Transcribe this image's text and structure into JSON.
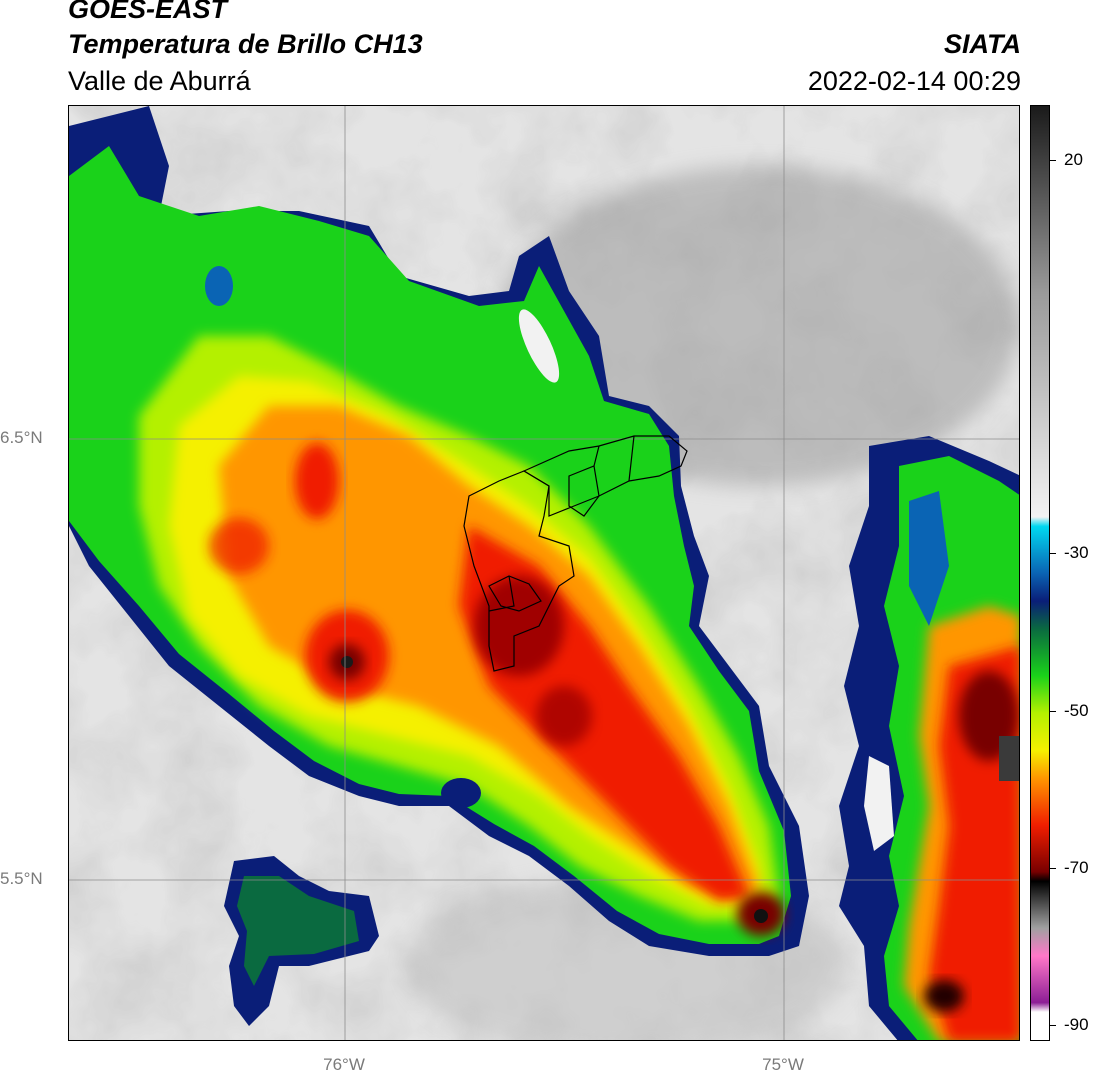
{
  "header": {
    "satellite": "GOES-EAST",
    "product": "Temperatura de Brillo CH13",
    "region": "Valle de Aburrá",
    "organization": "SIATA",
    "timestamp": "2022-02-14 00:29"
  },
  "map": {
    "lat_labels": [
      {
        "value": 6.5,
        "label": "6.5°N"
      },
      {
        "value": 5.5,
        "label": "5.5°N"
      }
    ],
    "lon_labels": [
      {
        "value": -76.0,
        "label": "76°W"
      },
      {
        "value": -75.0,
        "label": "75°W"
      }
    ]
  },
  "colorbar": {
    "range": [
      -92,
      27
    ],
    "tick_labels": [
      {
        "value": 20,
        "label": "20"
      },
      {
        "value": -30,
        "label": "-30"
      },
      {
        "value": -50,
        "label": "-50"
      },
      {
        "value": -70,
        "label": "-70"
      },
      {
        "value": -90,
        "label": "-90"
      }
    ],
    "colors": {
      "clear_sky_high": "#1a1a1a",
      "clear_sky_mid": "#9a9a9a",
      "clear_sky_low": "#f2f2f2",
      "cyan": "#00d8f0",
      "blue": "#0a64b4",
      "navy": "#0a1e78",
      "dark_green": "#0a6a40",
      "green": "#1ad21a",
      "yellow_green": "#b4f000",
      "yellow": "#f5f000",
      "orange": "#ff9600",
      "red": "#f01e00",
      "dark_red": "#780000",
      "black": "#000000",
      "gray_cold": "#a0a0a0",
      "pink": "#ff78c8",
      "purple": "#8c1e96",
      "white": "#ffffff"
    }
  }
}
